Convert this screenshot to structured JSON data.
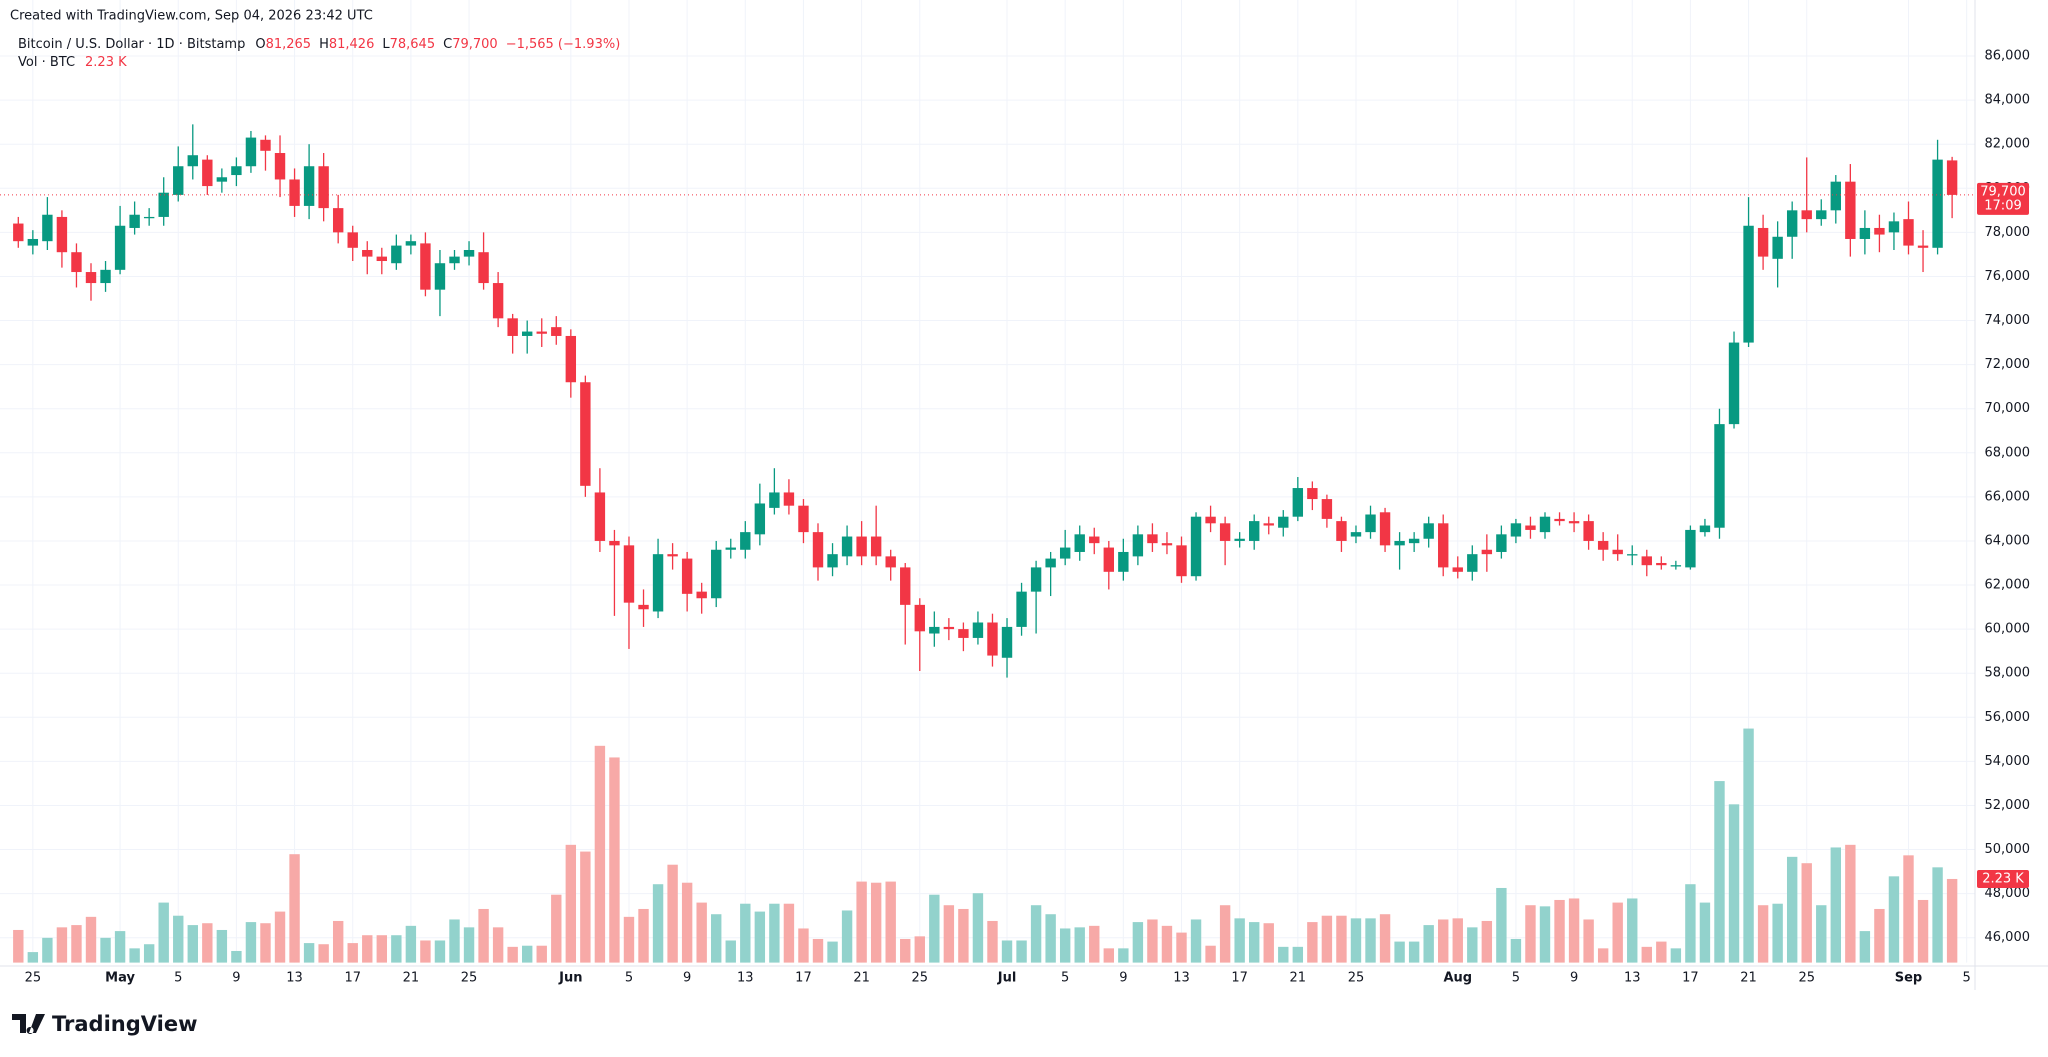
{
  "chart_data": {
    "type": "candlestick",
    "created": "Created with TradingView.com, Sep 04, 2026 23:42 UTC",
    "symbol": "Bitcoin / U.S. Dollar · 1D · Bitstamp",
    "legend_ohlc": [
      {
        "key": "O",
        "value": "81,265"
      },
      {
        "key": "H",
        "value": "81,426"
      },
      {
        "key": "L",
        "value": "78,645"
      },
      {
        "key": "C",
        "value": "79,700"
      }
    ],
    "change": "−1,565 (−1.93%)",
    "volume_title": "Vol · BTC",
    "last_volume_label": "2.23 K",
    "last_price_label": "79,700",
    "countdown": "17:09",
    "last_price": 79700,
    "logo": "TradingView",
    "up_color": "#089981",
    "down_color": "#f23645",
    "up_volume_color": "#92d2cc",
    "down_volume_color": "#f7a9a7",
    "grid": true,
    "categories": [
      null,
      "25",
      null,
      null,
      null,
      null,
      null,
      "May",
      null,
      null,
      null,
      "5",
      null,
      null,
      null,
      "9",
      null,
      null,
      null,
      "13",
      null,
      null,
      null,
      "17",
      null,
      null,
      null,
      "21",
      null,
      null,
      null,
      "25",
      null,
      null,
      null,
      null,
      null,
      null,
      "Jun",
      null,
      null,
      null,
      "5",
      null,
      null,
      null,
      "9",
      null,
      null,
      null,
      "13",
      null,
      null,
      null,
      "17",
      null,
      null,
      null,
      "21",
      null,
      null,
      null,
      "25",
      null,
      null,
      null,
      null,
      null,
      "Jul",
      null,
      null,
      null,
      "5",
      null,
      null,
      null,
      "9",
      null,
      null,
      null,
      "13",
      null,
      null,
      null,
      "17",
      null,
      null,
      null,
      "21",
      null,
      null,
      null,
      "25",
      null,
      null,
      null,
      null,
      null,
      null,
      "Aug",
      null,
      null,
      null,
      "5",
      null,
      null,
      null,
      "9",
      null,
      null,
      null,
      "13",
      null,
      null,
      null,
      "17",
      null,
      null,
      null,
      "21",
      null,
      null,
      null,
      "25",
      null,
      null,
      null,
      null,
      null,
      null,
      "Sep",
      null,
      null,
      null,
      "5"
    ],
    "month_labels": [
      "May",
      "Jun",
      "Jul",
      "Aug",
      "Sep"
    ],
    "open": [
      78400,
      77400,
      77600,
      78700,
      77100,
      76200,
      75700,
      76300,
      78200,
      78700,
      78700,
      79700,
      81000,
      81300,
      80300,
      80600,
      81000,
      82200,
      81600,
      80400,
      79200,
      81000,
      79100,
      78000,
      77200,
      76900,
      76600,
      77400,
      77500,
      75400,
      76600,
      76900,
      77100,
      75700,
      74100,
      73300,
      73500,
      73700,
      73300,
      71200,
      66200,
      64000,
      63800,
      61100,
      60800,
      63400,
      63200,
      61700,
      61400,
      63600,
      63600,
      64300,
      65500,
      66200,
      65600,
      64400,
      62800,
      63300,
      64200,
      64200,
      63300,
      62800,
      61100,
      59800,
      60100,
      60000,
      59600,
      60300,
      58700,
      60100,
      61700,
      62800,
      63200,
      63500,
      64200,
      63700,
      62600,
      63300,
      64300,
      63900,
      63800,
      62400,
      65100,
      64800,
      64000,
      64000,
      64800,
      64600,
      65100,
      66400,
      65900,
      64900,
      64200,
      64400,
      65300,
      63800,
      63900,
      64100,
      64800,
      62800,
      62600,
      63600,
      63500,
      64200,
      64700,
      64400,
      65000,
      64900,
      64900,
      64000,
      63600,
      63400,
      63300,
      63000,
      62900,
      62800,
      64400,
      64600,
      69300,
      73000,
      78200,
      76800,
      77800,
      79000,
      78600,
      79000,
      80300,
      77700,
      78200,
      78000,
      78600,
      77400,
      77300,
      81265,
      null
    ],
    "high": [
      78700,
      78100,
      79600,
      79000,
      77500,
      76600,
      76700,
      79200,
      79400,
      79100,
      80500,
      81900,
      82900,
      81500,
      80900,
      81400,
      82600,
      82400,
      82400,
      80900,
      82000,
      81600,
      79700,
      78300,
      77600,
      77300,
      77900,
      77900,
      78000,
      77200,
      77200,
      77600,
      78000,
      76200,
      74300,
      74000,
      74100,
      74200,
      73600,
      71500,
      67300,
      64500,
      64200,
      61800,
      64100,
      63900,
      63500,
      62100,
      64000,
      64100,
      64900,
      66600,
      67300,
      66800,
      65900,
      64800,
      63900,
      64700,
      64900,
      65600,
      63600,
      63000,
      61400,
      60800,
      60500,
      60300,
      60800,
      60700,
      60500,
      62100,
      63100,
      63500,
      64500,
      64700,
      64600,
      64000,
      64100,
      64700,
      64800,
      64400,
      64200,
      65300,
      65600,
      65100,
      64400,
      65200,
      65100,
      65400,
      66900,
      66700,
      66100,
      65100,
      64700,
      65600,
      65500,
      64400,
      64400,
      65100,
      65200,
      63300,
      63800,
      64300,
      64700,
      65000,
      65100,
      65300,
      65300,
      65300,
      65200,
      64400,
      64300,
      63800,
      63600,
      63300,
      63100,
      64700,
      65000,
      70000,
      73500,
      79600,
      78800,
      78500,
      79400,
      81400,
      79500,
      80600,
      81100,
      79000,
      78800,
      78900,
      79400,
      78100,
      82200,
      81426,
      null
    ],
    "low": [
      77300,
      77000,
      77200,
      76400,
      75500,
      74900,
      75300,
      76100,
      77900,
      78300,
      78300,
      79400,
      80400,
      79700,
      79800,
      80100,
      80700,
      80800,
      79600,
      78700,
      78600,
      78500,
      77500,
      76700,
      76100,
      76100,
      76300,
      77000,
      75100,
      74200,
      76300,
      76500,
      75400,
      73700,
      72500,
      72500,
      72800,
      72900,
      70500,
      66000,
      63500,
      60600,
      59100,
      60100,
      60500,
      62700,
      60800,
      60700,
      61000,
      63200,
      63200,
      63800,
      65200,
      65200,
      63900,
      62200,
      62400,
      62900,
      62900,
      62900,
      62200,
      59300,
      58100,
      59200,
      59500,
      59000,
      59300,
      58300,
      57800,
      59700,
      59800,
      61500,
      62900,
      63100,
      63400,
      61800,
      62200,
      62900,
      63500,
      63400,
      62100,
      62200,
      64400,
      62900,
      63700,
      63600,
      64300,
      64200,
      64900,
      65400,
      64600,
      63500,
      63900,
      64100,
      63500,
      62700,
      63500,
      63700,
      62400,
      62300,
      62200,
      62600,
      63200,
      63900,
      64100,
      64100,
      64700,
      64400,
      63600,
      63100,
      63100,
      62900,
      62400,
      62700,
      62700,
      62700,
      64200,
      64100,
      69100,
      72800,
      76300,
      75500,
      76800,
      78000,
      78300,
      78400,
      76900,
      77000,
      77100,
      77200,
      77000,
      76200,
      77000,
      78645,
      null
    ],
    "close": [
      77600,
      77700,
      78800,
      77100,
      76200,
      75700,
      76300,
      78300,
      78800,
      78700,
      79800,
      81000,
      81500,
      80100,
      80500,
      81000,
      82300,
      81700,
      80400,
      79200,
      81000,
      79100,
      78000,
      77300,
      76900,
      76700,
      77400,
      77600,
      75400,
      76600,
      76900,
      77200,
      75700,
      74100,
      73300,
      73500,
      73400,
      73300,
      71200,
      66500,
      64000,
      63800,
      61200,
      60900,
      63400,
      63300,
      61600,
      61400,
      63600,
      63700,
      64400,
      65700,
      66200,
      65600,
      64400,
      62800,
      63400,
      64200,
      63300,
      63300,
      62800,
      61100,
      59900,
      60100,
      60000,
      59600,
      60300,
      58800,
      60100,
      61700,
      62800,
      63200,
      63700,
      64300,
      63900,
      62600,
      63500,
      64300,
      63900,
      63800,
      62400,
      65100,
      64800,
      64000,
      64100,
      64900,
      64700,
      65100,
      66400,
      65900,
      65000,
      64000,
      64400,
      65200,
      63800,
      64000,
      64100,
      64800,
      62800,
      62600,
      63400,
      63400,
      64300,
      64800,
      64500,
      65100,
      64900,
      64800,
      64000,
      63600,
      63400,
      63400,
      62900,
      62900,
      62900,
      64500,
      64700,
      69300,
      73000,
      78300,
      76900,
      77800,
      79000,
      78600,
      79000,
      80300,
      77700,
      78200,
      77900,
      78500,
      77400,
      77300,
      81300,
      79700,
      null
    ],
    "volume": [
      0.87,
      0.28,
      0.66,
      0.94,
      1.0,
      1.22,
      0.66,
      0.84,
      0.38,
      0.49,
      1.6,
      1.25,
      1.0,
      1.05,
      0.87,
      0.31,
      1.08,
      1.05,
      1.36,
      2.89,
      0.52,
      0.49,
      1.11,
      0.52,
      0.73,
      0.73,
      0.73,
      0.98,
      0.59,
      0.59,
      1.15,
      0.94,
      1.43,
      0.94,
      0.42,
      0.45,
      0.45,
      1.81,
      3.14,
      2.96,
      5.78,
      5.47,
      1.22,
      1.43,
      2.09,
      2.61,
      2.13,
      1.6,
      1.29,
      0.59,
      1.57,
      1.36,
      1.57,
      1.57,
      0.91,
      0.63,
      0.56,
      1.39,
      2.16,
      2.13,
      2.16,
      0.63,
      0.7,
      1.81,
      1.53,
      1.43,
      1.85,
      1.11,
      0.59,
      0.59,
      1.53,
      1.29,
      0.91,
      0.94,
      0.98,
      0.38,
      0.38,
      1.08,
      1.15,
      0.98,
      0.8,
      1.15,
      0.45,
      1.53,
      1.18,
      1.08,
      1.05,
      0.42,
      0.42,
      1.08,
      1.25,
      1.25,
      1.18,
      1.18,
      1.29,
      0.56,
      0.56,
      1.0,
      1.15,
      1.18,
      0.94,
      1.11,
      1.99,
      0.63,
      1.53,
      1.5,
      1.67,
      1.71,
      1.15,
      0.38,
      1.6,
      1.71,
      0.42,
      0.56,
      0.38,
      2.09,
      1.6,
      4.84,
      4.22,
      6.24,
      1.53,
      1.57,
      2.82,
      2.65,
      1.53,
      3.07,
      3.14,
      0.84,
      1.43,
      2.3,
      2.86,
      1.67,
      2.54,
      2.23,
      null
    ],
    "ylim": [
      44870,
      87240
    ],
    "y2lim": [
      0,
      24.9
    ],
    "yticks": [
      {
        "value": 46000,
        "label": "46,000"
      },
      {
        "value": 48000,
        "label": "48,000"
      },
      {
        "value": 50000,
        "label": "50,000"
      },
      {
        "value": 52000,
        "label": "52,000"
      },
      {
        "value": 54000,
        "label": "54,000"
      },
      {
        "value": 56000,
        "label": "56,000"
      },
      {
        "value": 58000,
        "label": "58,000"
      },
      {
        "value": 60000,
        "label": "60,000"
      },
      {
        "value": 62000,
        "label": "62,000"
      },
      {
        "value": 64000,
        "label": "64,000"
      },
      {
        "value": 66000,
        "label": "66,000"
      },
      {
        "value": 68000,
        "label": "68,000"
      },
      {
        "value": 70000,
        "label": "70,000"
      },
      {
        "value": 72000,
        "label": "72,000"
      },
      {
        "value": 74000,
        "label": "74,000"
      },
      {
        "value": 76000,
        "label": "76,000"
      },
      {
        "value": 78000,
        "label": "78,000"
      },
      {
        "value": 80000,
        "label": "80,000"
      },
      {
        "value": 82000,
        "label": "82,000"
      },
      {
        "value": 84000,
        "label": "84,000"
      },
      {
        "value": 86000,
        "label": "86,000"
      }
    ]
  }
}
